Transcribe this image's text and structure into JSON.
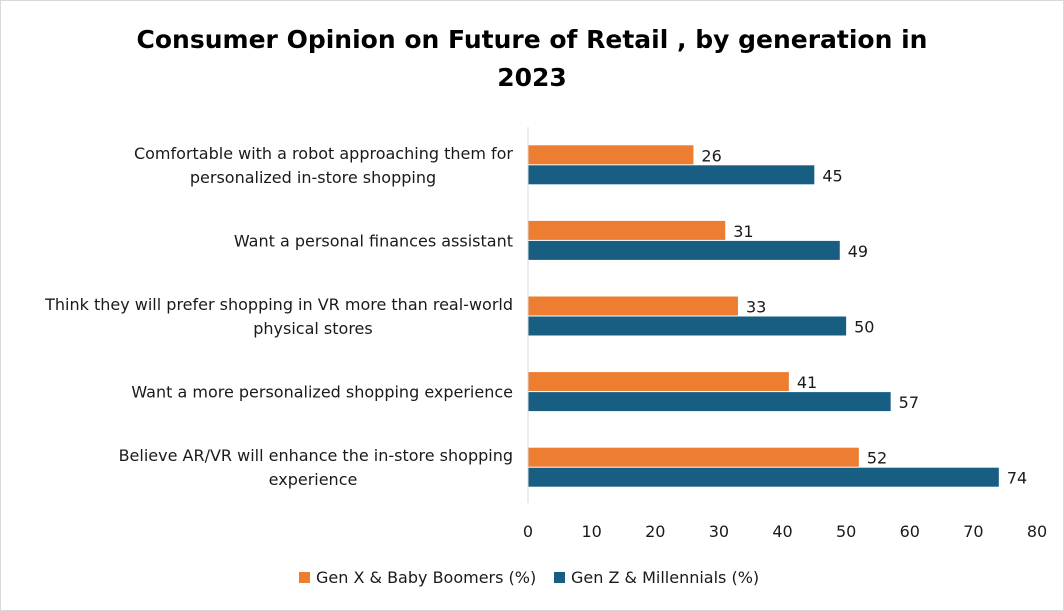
{
  "chart_data": {
    "type": "bar",
    "orientation": "horizontal",
    "title_lines": [
      "Consumer Opinion on Future of Retail , by generation in",
      "2023"
    ],
    "categories": [
      [
        "Comfortable with a robot approaching them for",
        "personalized in-store shopping"
      ],
      [
        "Want a personal finances assistant"
      ],
      [
        "Think they will prefer shopping in VR more than real-world",
        "physical stores"
      ],
      [
        "Want a more personalized shopping experience"
      ],
      [
        "Believe AR/VR will enhance the in-store shopping",
        "experience"
      ]
    ],
    "series": [
      {
        "name": "Gen X & Baby Boomers (%)",
        "color": "#ed7d31",
        "values": [
          26,
          31,
          33,
          41,
          52
        ]
      },
      {
        "name": "Gen Z & Millennials (%)",
        "color": "#175e82",
        "values": [
          45,
          49,
          50,
          57,
          74
        ]
      }
    ],
    "xlim": [
      0,
      80
    ],
    "xticks": [
      0,
      10,
      20,
      30,
      40,
      50,
      60,
      70,
      80
    ],
    "grid": false,
    "legend_position": "bottom"
  }
}
